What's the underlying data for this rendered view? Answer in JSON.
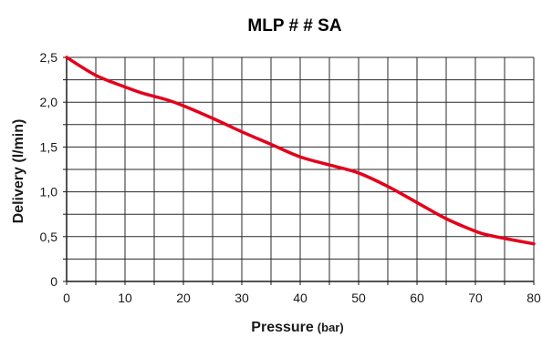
{
  "chart_data": {
    "type": "line",
    "title": "MLP # # SA",
    "xlabel": "Pressure",
    "xlabel_unit": "(bar)",
    "ylabel": "Delivery (l/min)",
    "xlim": [
      0,
      80
    ],
    "ylim": [
      0,
      2.5
    ],
    "x_ticks": [
      "0",
      "10",
      "20",
      "30",
      "40",
      "50",
      "60",
      "70",
      "80"
    ],
    "y_ticks": [
      "0",
      "0,5",
      "1,0",
      "1,5",
      "2,0",
      "2,5"
    ],
    "grid": true,
    "series": [
      {
        "color": "#e3001b",
        "x": [
          0,
          5,
          10,
          13,
          17,
          20,
          25,
          30,
          35,
          40,
          45,
          50,
          55,
          60,
          65,
          70,
          72,
          75,
          80
        ],
        "y": [
          2.5,
          2.3,
          2.17,
          2.1,
          2.03,
          1.96,
          1.82,
          1.67,
          1.53,
          1.39,
          1.3,
          1.21,
          1.06,
          0.88,
          0.7,
          0.56,
          0.52,
          0.48,
          0.42
        ]
      }
    ]
  }
}
